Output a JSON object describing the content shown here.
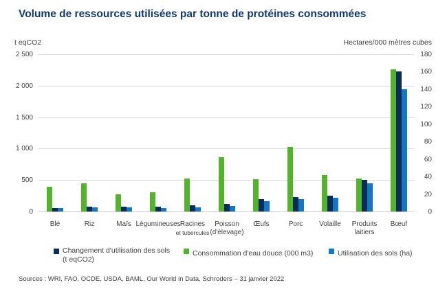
{
  "header": {
    "title": "Volume de ressources utilisées par tonne de protéines consommées"
  },
  "chart_data": {
    "type": "bar",
    "title": "Volume de ressources utilisées par tonne de protéines consommées",
    "left_axis": {
      "label": "t eqCO2",
      "tick_values": [
        0,
        500,
        1000,
        1500,
        2000,
        2500
      ],
      "tick_labels": [
        "0",
        "500",
        "1 000",
        "1 500",
        "2 000",
        "2 500"
      ],
      "max": 2500
    },
    "right_axis": {
      "label": "Hectares/000 mètres cubes",
      "tick_values": [
        0,
        20,
        40,
        60,
        80,
        100,
        120,
        140,
        160,
        180
      ],
      "tick_labels": [
        "0",
        "20",
        "40",
        "60",
        "80",
        "100",
        "120",
        "140",
        "160",
        "180"
      ],
      "max": 180
    },
    "grid": "horizontal-at-left-ticks",
    "legend_position": "bottom",
    "categories": [
      "Blé",
      "Riz",
      "Maïs",
      "Légumineuses",
      "Racines et tubercules",
      "Poisson (d'élevage)",
      "Œufs",
      "Porc",
      "Volaille",
      "Produits laitiers",
      "Bœuf"
    ],
    "category_label_lines": [
      [
        "Blé"
      ],
      [
        "Riz"
      ],
      [
        "Maïs"
      ],
      [
        "Légumineuses"
      ],
      [
        "Racines",
        "et tubercules"
      ],
      [
        "Poisson",
        "(d'élevage)"
      ],
      [
        "Œufs"
      ],
      [
        "Porc"
      ],
      [
        "Volaille"
      ],
      [
        "Produits",
        "laitiers"
      ],
      [
        "Bœuf"
      ]
    ],
    "series": [
      {
        "name": "Changement d'utilisation des sols (t eqCO2)",
        "axis": "left",
        "color": "#0a2b5c",
        "bar_position": 1,
        "values": [
          60,
          80,
          80,
          75,
          100,
          120,
          200,
          230,
          250,
          505,
          2230
        ]
      },
      {
        "name": "Consommation d'eau douce (000 m3)",
        "axis": "right",
        "color": "#54b32d",
        "bar_position": 0,
        "values": [
          28,
          32,
          20,
          22,
          38,
          62,
          37,
          74,
          42,
          38,
          163
        ]
      },
      {
        "name": "Utilisation des sols (ha)",
        "axis": "right",
        "color": "#1478be",
        "bar_position": 2,
        "values": [
          4,
          5,
          5,
          4,
          5,
          6,
          12,
          14,
          16,
          32,
          140
        ]
      }
    ]
  },
  "legend": {
    "items": [
      {
        "label_line1": "Changement d'utilisation des sols",
        "label_line2": "(t eqCO2)",
        "color": "#0a2b5c"
      },
      {
        "label_line1": "Consommation d'eau douce (000 m3)",
        "label_line2": "",
        "color": "#54b32d"
      },
      {
        "label_line1": "Utilisation des sols (ha)",
        "label_line2": "",
        "color": "#1478be"
      }
    ]
  },
  "footer": {
    "sources": "Sources : WRI, FAO, OCDE, USDA, BAML, Our World in Data, Schroders – 31 janvier 2022"
  },
  "colors": {
    "title": "#12376f",
    "text": "#3f3f3f",
    "gridline": "#d9d9d9",
    "navy": "#0a2b5c",
    "green": "#54b32d",
    "blue": "#1478be"
  }
}
